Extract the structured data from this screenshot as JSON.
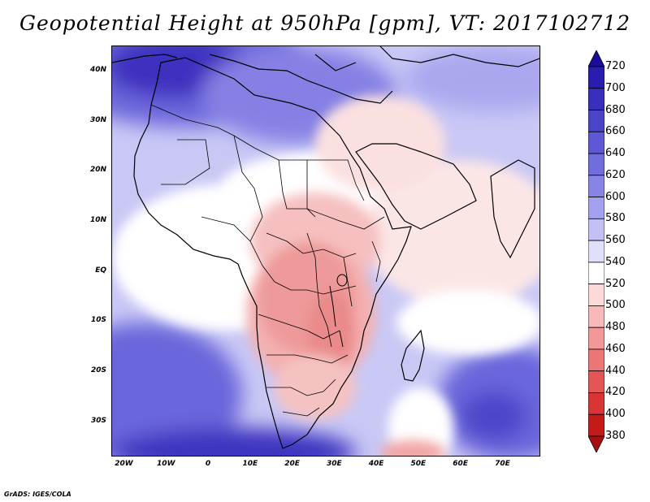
{
  "title": "Geopotential Height at 950hPa [gpm], VT: 2017102712",
  "credit": "GrADS: IGES/COLA",
  "map": {
    "lon_range": [
      -23,
      79
    ],
    "lat_range": [
      -37,
      45
    ],
    "lat_labels": [
      "40N",
      "30N",
      "20N",
      "10N",
      "EQ",
      "10S",
      "20S",
      "30S"
    ],
    "lat_values": [
      40,
      30,
      20,
      10,
      0,
      -10,
      -20,
      -30
    ],
    "lon_labels": [
      "20W",
      "10W",
      "0",
      "10E",
      "20E",
      "30E",
      "40E",
      "50E",
      "60E",
      "70E"
    ],
    "lon_values": [
      -20,
      -10,
      0,
      10,
      20,
      30,
      40,
      50,
      60,
      70
    ]
  },
  "colorbar": {
    "levels": [
      "720",
      "700",
      "680",
      "660",
      "640",
      "620",
      "600",
      "580",
      "560",
      "540",
      "520",
      "500",
      "480",
      "460",
      "440",
      "420",
      "400",
      "380"
    ],
    "colors": [
      "#1a0d9a",
      "#2a1cae",
      "#3a2fbd",
      "#4b43c8",
      "#5e58d4",
      "#716ddd",
      "#8884e6",
      "#a3a0ee",
      "#c2c1f4",
      "#e0e0fa",
      "#ffffff",
      "#fcdada",
      "#f7b9b9",
      "#f29898",
      "#eb7676",
      "#e45656",
      "#d83636",
      "#c31a1a",
      "#a80f0f"
    ]
  }
}
